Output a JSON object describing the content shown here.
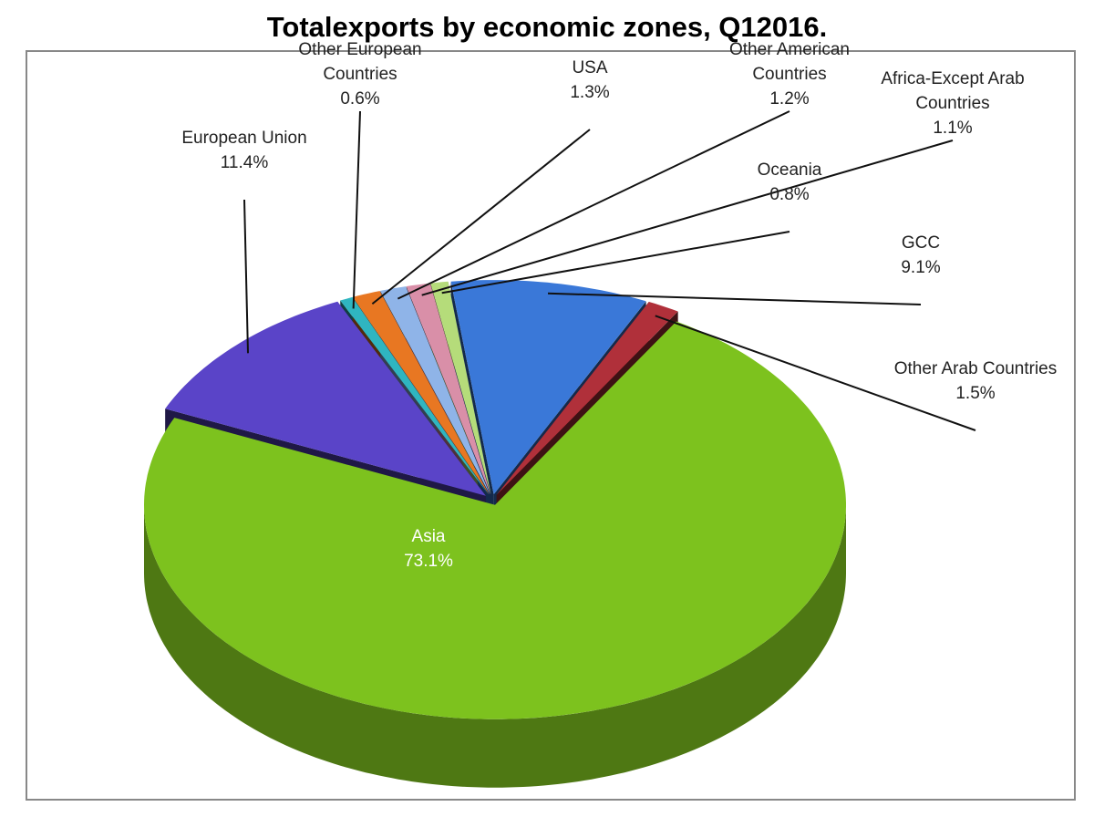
{
  "chart_data": {
    "type": "pie",
    "title": "Totalexports by economic zones, Q12016.",
    "categories": [
      "Other European Countries",
      "USA",
      "Other American Countries",
      "Africa-Except Arab Countries",
      "Oceania",
      "GCC",
      "Other Arab Countries",
      "Asia",
      "European Union"
    ],
    "values": [
      0.6,
      1.3,
      1.2,
      1.1,
      0.8,
      9.1,
      1.5,
      73.1,
      11.4
    ],
    "value_labels": [
      "0.6%",
      "1.3%",
      "1.2%",
      "1.1%",
      "0.8%",
      "9.1%",
      "1.5%",
      "73.1%",
      "11.4%"
    ],
    "colors": [
      "#2fb5c0",
      "#e87722",
      "#8fb4e8",
      "#d98fa8",
      "#b5dc7a",
      "#3a78d8",
      "#b0303a",
      "#7dc21e",
      "#5a44c8"
    ]
  }
}
